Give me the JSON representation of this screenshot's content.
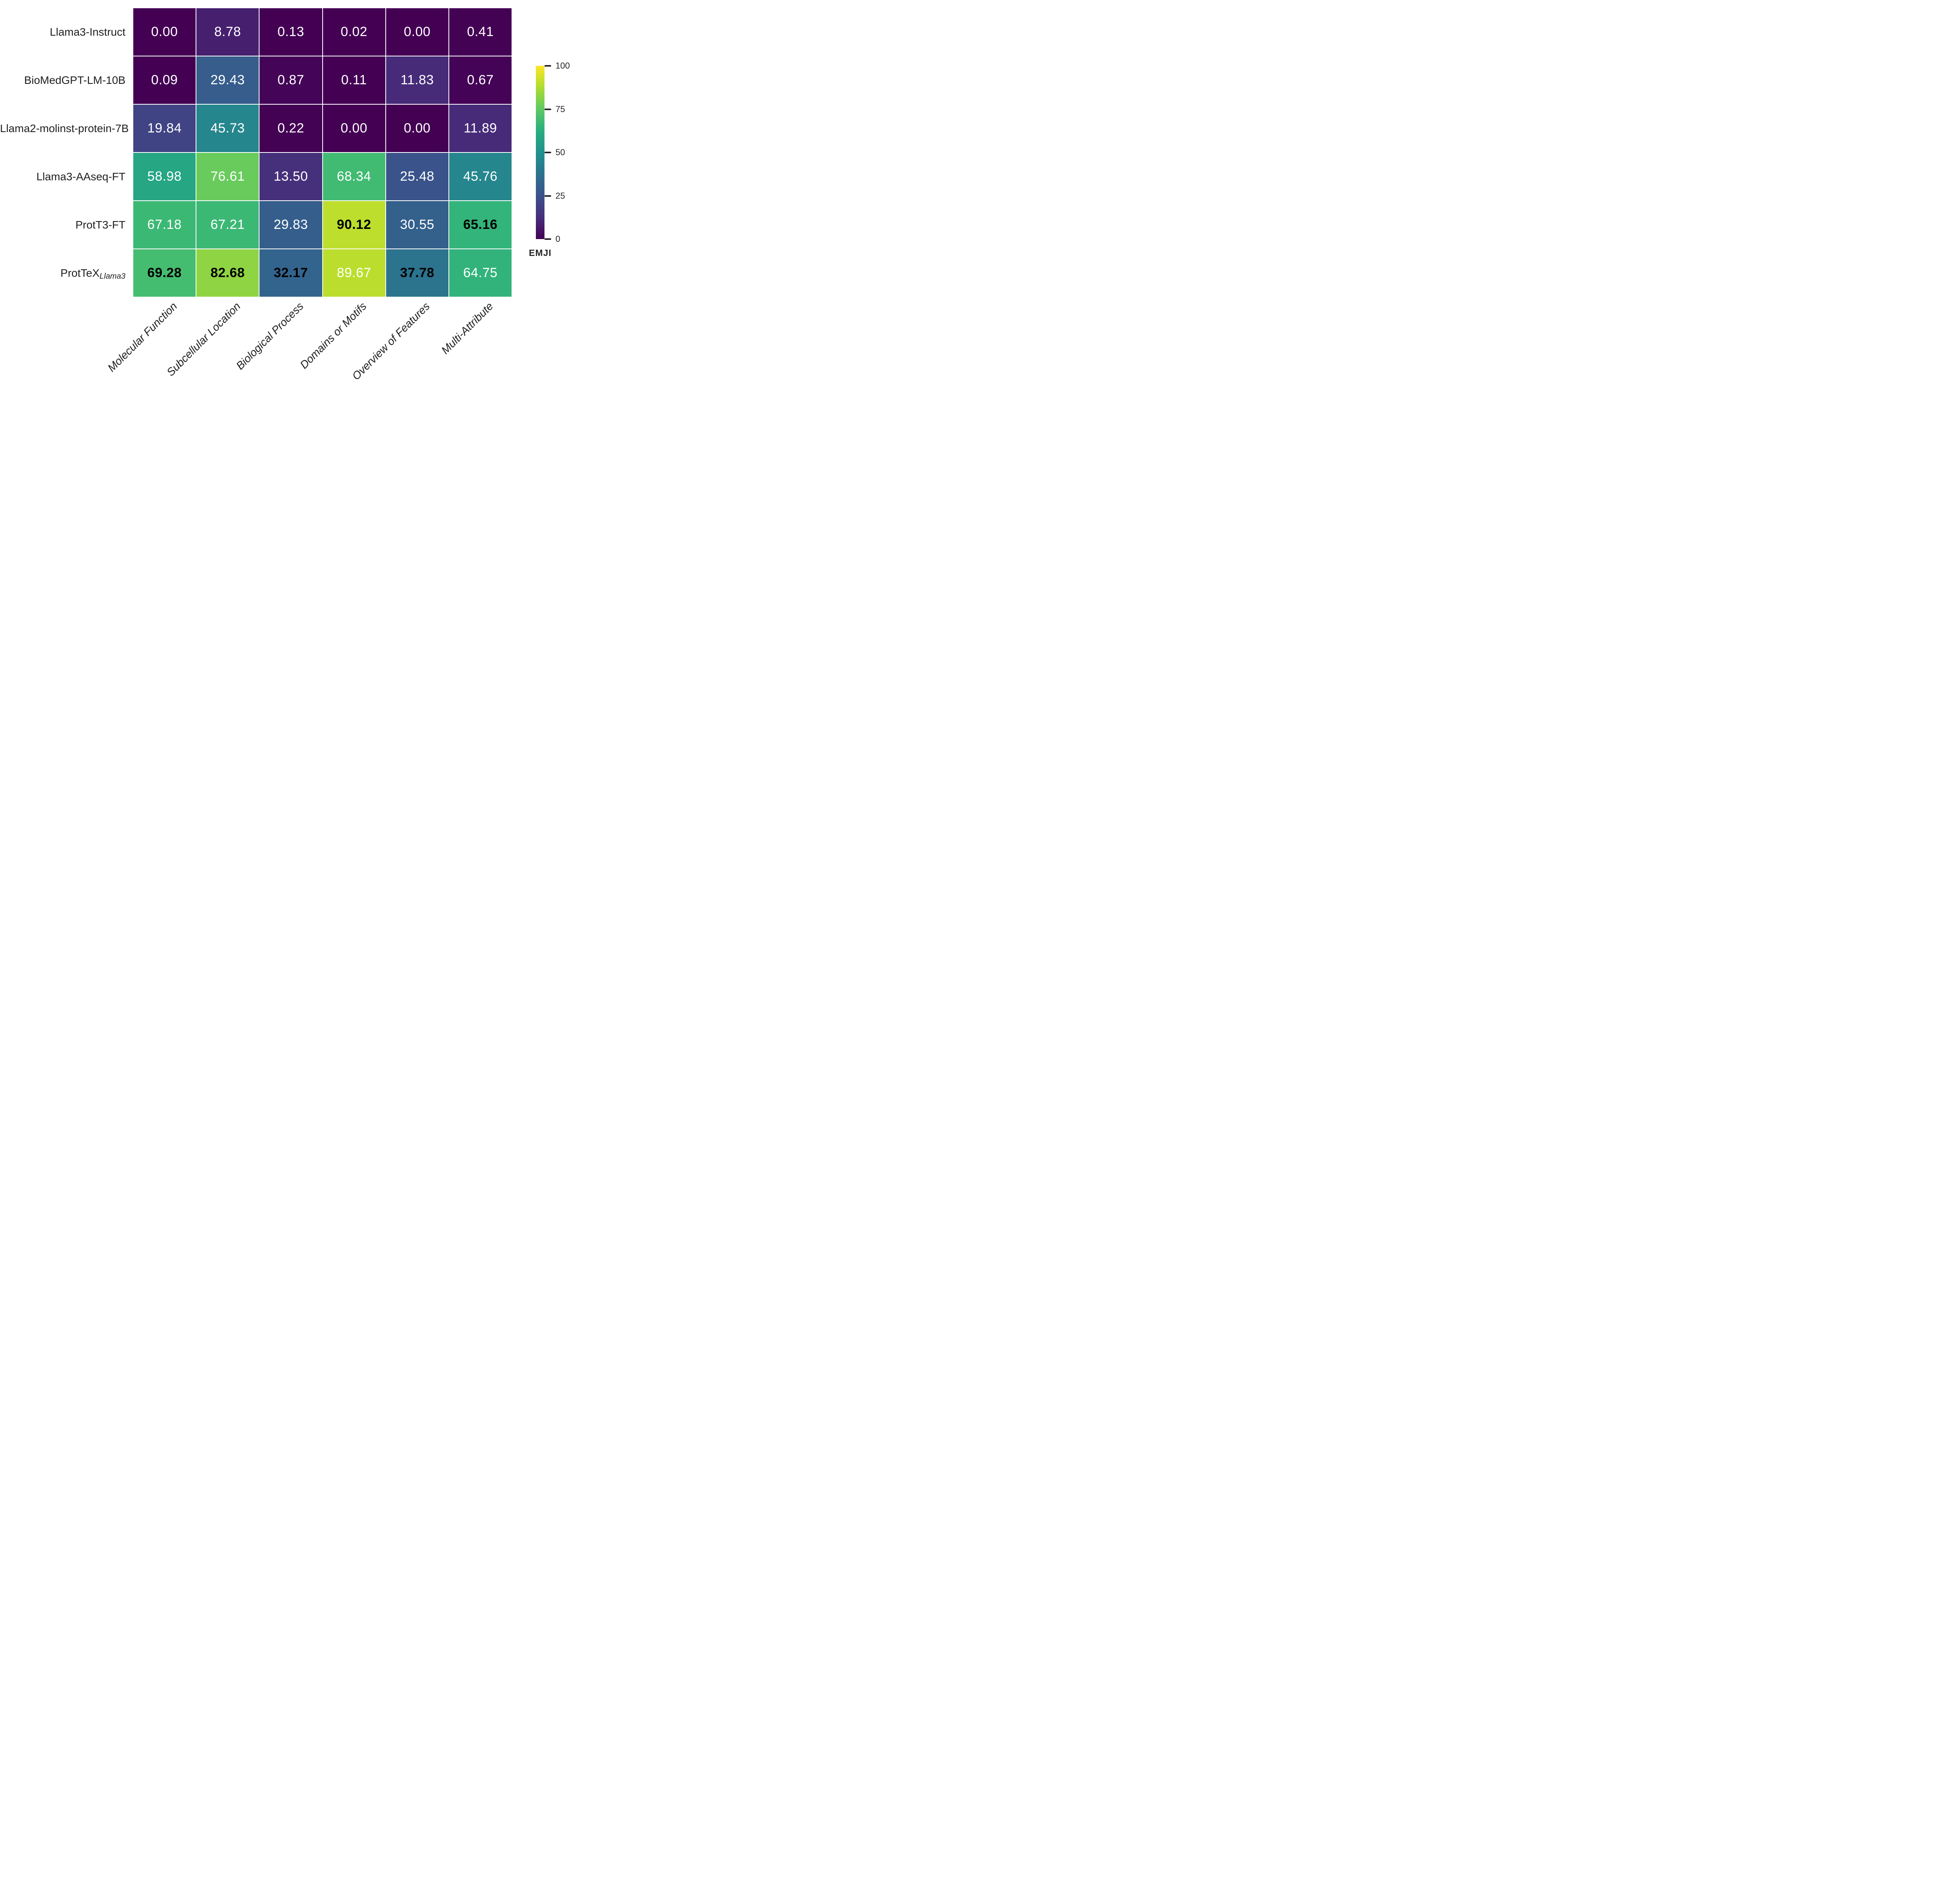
{
  "chart_data": {
    "type": "heatmap",
    "columns": [
      "Molecular Function",
      "Subcellular Location",
      "Biological Process",
      "Domains or Motifs",
      "Overview of Features",
      "Multi-Attribute"
    ],
    "rows": [
      {
        "label": "Llama3-Instruct",
        "label_subscript": "",
        "values": [
          0.0,
          8.78,
          0.13,
          0.02,
          0.0,
          0.41
        ]
      },
      {
        "label": "BioMedGPT-LM-10B",
        "label_subscript": "",
        "values": [
          0.09,
          29.43,
          0.87,
          0.11,
          11.83,
          0.67
        ]
      },
      {
        "label": "Llama2-molinst-protein-7B",
        "label_subscript": "",
        "values": [
          19.84,
          45.73,
          0.22,
          0.0,
          0.0,
          11.89
        ]
      },
      {
        "label": "Llama3-AAseq-FT",
        "label_subscript": "",
        "values": [
          58.98,
          76.61,
          13.5,
          68.34,
          25.48,
          45.76
        ]
      },
      {
        "label": "ProtT3-FT",
        "label_subscript": "",
        "values": [
          67.18,
          67.21,
          29.83,
          90.12,
          30.55,
          65.16
        ]
      },
      {
        "label": "ProtTeX",
        "label_subscript": "Llama3",
        "values": [
          69.28,
          82.68,
          32.17,
          89.67,
          37.78,
          64.75
        ]
      }
    ],
    "value_format_decimals": 2,
    "value_range": [
      0,
      100
    ],
    "colorbar_label": "EMJI",
    "colorbar_ticks": [
      0,
      25,
      50,
      75,
      100
    ],
    "colormap_name": "viridis",
    "colormap_stops": [
      "#440154",
      "#472d7b",
      "#3b528b",
      "#2c728e",
      "#21918c",
      "#28ae80",
      "#5ec962",
      "#addc30",
      "#fde725"
    ],
    "highlight_rule": "column-max-bold-black",
    "cell_text_color": "#ffffff",
    "cell_text_color_max": "#000000",
    "axis_text_color": "#1f1f1f",
    "grid_line_color": "#ffffff",
    "legend_position": "right"
  }
}
